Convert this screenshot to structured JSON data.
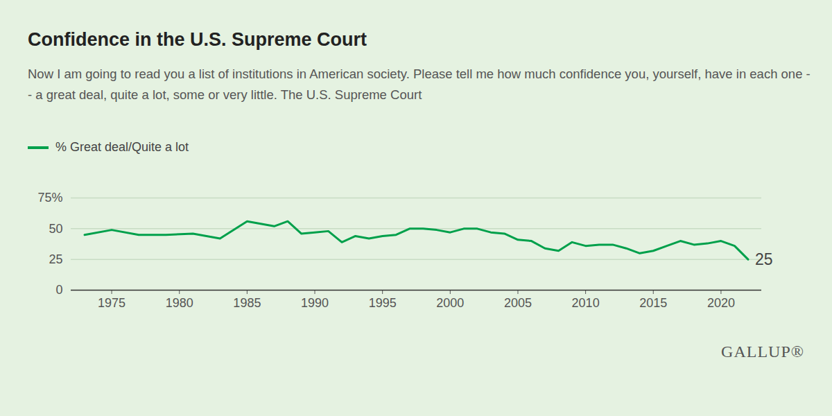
{
  "chart_data": {
    "type": "line",
    "title": "Confidence in the U.S. Supreme Court",
    "subtitle": "Now I am going to read you a list of institutions in American society. Please tell me how much confidence you, yourself, have in each one -- a great deal, quite a lot, some or very little. The U.S. Supreme Court",
    "caption": "GALLUP®",
    "x": [
      1973,
      1975,
      1977,
      1979,
      1981,
      1983,
      1985,
      1986,
      1987,
      1988,
      1989,
      1990,
      1991,
      1992,
      1993,
      1994,
      1995,
      1996,
      1997,
      1998,
      1999,
      2000,
      2001,
      2002,
      2003,
      2004,
      2005,
      2006,
      2007,
      2008,
      2009,
      2010,
      2011,
      2012,
      2013,
      2014,
      2015,
      2016,
      2017,
      2018,
      2019,
      2020,
      2021,
      2022
    ],
    "series": [
      {
        "name": "% Great deal/Quite a lot",
        "color": "#00a04b",
        "values": [
          45,
          49,
          45,
          45,
          46,
          42,
          56,
          54,
          52,
          56,
          46,
          47,
          48,
          39,
          44,
          42,
          44,
          45,
          50,
          50,
          49,
          47,
          50,
          50,
          47,
          46,
          41,
          40,
          34,
          32,
          39,
          36,
          37,
          37,
          34,
          30,
          32,
          36,
          40,
          37,
          38,
          40,
          36,
          25
        ]
      }
    ],
    "annotations": [
      {
        "x": 2022,
        "y": 25,
        "text": "25"
      }
    ],
    "xlim": [
      1972,
      2023
    ],
    "xticks": [
      1975,
      1980,
      1985,
      1990,
      1995,
      2000,
      2005,
      2010,
      2015,
      2020
    ],
    "ylim": [
      0,
      75
    ],
    "yticks": [
      0,
      25,
      50,
      {
        "value": 75,
        "label": "75%"
      }
    ],
    "grid": true,
    "legend": "top-left"
  }
}
